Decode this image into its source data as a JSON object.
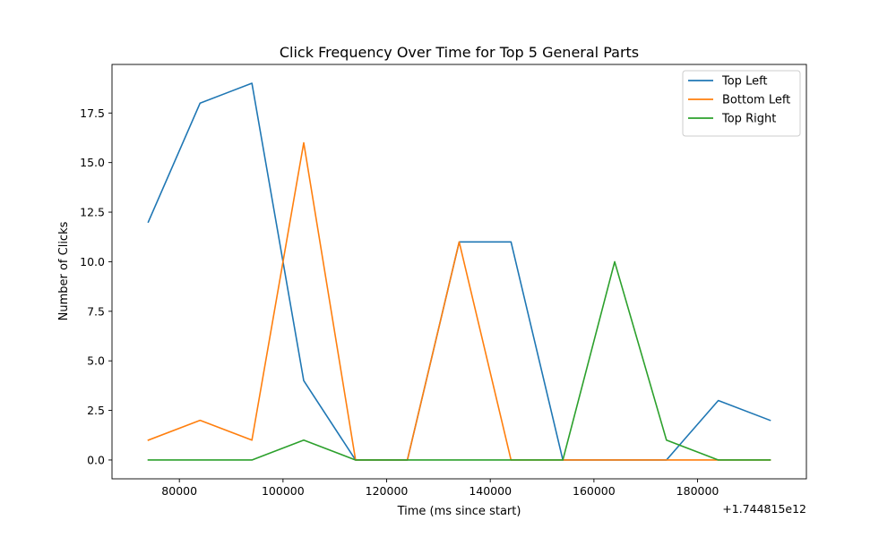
{
  "chart_data": {
    "type": "line",
    "title": "Click Frequency Over Time for Top 5 General Parts",
    "xlabel": "Time (ms since start)",
    "ylabel": "Number of Clicks",
    "x_offset_label": "+1.744815e12",
    "x": [
      74000,
      84000,
      94000,
      104000,
      114000,
      124000,
      134000,
      144000,
      154000,
      164000,
      174000,
      184000,
      194000
    ],
    "xlim": [
      67000,
      201000
    ],
    "ylim": [
      -0.95,
      19.95
    ],
    "x_ticks": [
      80000,
      100000,
      120000,
      140000,
      160000,
      180000
    ],
    "x_tick_labels": [
      "80000",
      "100000",
      "120000",
      "140000",
      "160000",
      "180000"
    ],
    "y_ticks": [
      0,
      2.5,
      5,
      7.5,
      10,
      12.5,
      15,
      17.5
    ],
    "y_tick_labels": [
      "0.0",
      "2.5",
      "5.0",
      "7.5",
      "10.0",
      "12.5",
      "15.0",
      "17.5"
    ],
    "grid": false,
    "legend_position": "top-right",
    "series": [
      {
        "name": "Top Left",
        "color": "#1f77b4",
        "values": [
          12,
          18,
          19,
          4,
          0,
          0,
          11,
          11,
          0,
          0,
          0,
          3,
          2
        ]
      },
      {
        "name": "Bottom Left",
        "color": "#ff7f0e",
        "values": [
          1,
          2,
          1,
          16,
          0,
          0,
          11,
          0,
          0,
          0,
          0,
          0,
          0
        ]
      },
      {
        "name": "Top Right",
        "color": "#2ca02c",
        "values": [
          0,
          0,
          0,
          1,
          0,
          0,
          0,
          0,
          0,
          10,
          1,
          0,
          0
        ]
      }
    ]
  }
}
